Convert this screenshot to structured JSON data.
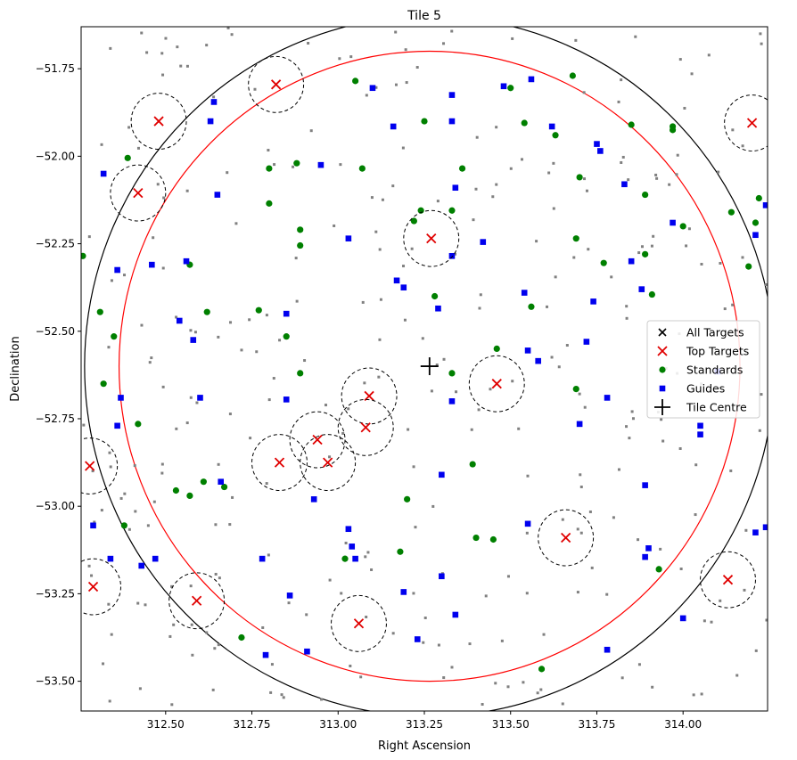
{
  "chart_data": {
    "type": "scatter",
    "title": "Tile 5",
    "xlabel": "Right Ascension",
    "ylabel": "Declination",
    "xlim": [
      312.255,
      314.245
    ],
    "ylim": [
      -53.585,
      -51.63
    ],
    "x_ticks": [
      312.5,
      312.75,
      313.0,
      313.25,
      313.5,
      313.75,
      314.0,
      314.25
    ],
    "x_tick_labels": [
      "312.50",
      "312.75",
      "313.00",
      "313.25",
      "313.50",
      "313.75",
      "314.00",
      "314.25"
    ],
    "y_ticks": [
      -51.75,
      -52.0,
      -52.25,
      -52.5,
      -52.75,
      -53.0,
      -53.25,
      -53.5
    ],
    "y_tick_labels": [
      "−51.75",
      "−52.00",
      "−52.25",
      "−52.50",
      "−52.75",
      "−53.00",
      "−53.25",
      "−53.50"
    ],
    "legend_position": "center-right",
    "legend": [
      "All Targets",
      "Top Targets",
      "Standards",
      "Guides",
      "Tile Centre"
    ],
    "colors": {
      "all_targets": "#808080",
      "top_targets": "#e00000",
      "standards": "#008000",
      "guides": "#0000ee",
      "tile_centre": "#000000",
      "inner_circle": "#ff0000",
      "outer_circle": "#000000"
    },
    "tile_centre": [
      313.265,
      -52.6
    ],
    "outer_circle_radius_deg": 1.0,
    "inner_circle_radius_deg": 0.9,
    "target_highlight_radius_deg": 0.08,
    "top_targets": [
      [
        312.48,
        -51.9
      ],
      [
        312.42,
        -52.105
      ],
      [
        312.82,
        -51.795
      ],
      [
        314.2,
        -51.905
      ],
      [
        313.27,
        -52.235
      ],
      [
        313.46,
        -52.65
      ],
      [
        313.09,
        -52.685
      ],
      [
        313.08,
        -52.775
      ],
      [
        312.94,
        -52.81
      ],
      [
        312.83,
        -52.875
      ],
      [
        312.97,
        -52.875
      ],
      [
        312.28,
        -52.885
      ],
      [
        313.66,
        -53.09
      ],
      [
        312.29,
        -53.23
      ],
      [
        312.59,
        -53.27
      ],
      [
        314.13,
        -53.21
      ],
      [
        313.06,
        -53.335
      ]
    ],
    "standards": [
      [
        312.26,
        -52.285
      ],
      [
        312.39,
        -52.005
      ],
      [
        312.31,
        -52.445
      ],
      [
        312.35,
        -52.515
      ],
      [
        312.32,
        -52.65
      ],
      [
        312.42,
        -52.765
      ],
      [
        312.38,
        -53.055
      ],
      [
        312.53,
        -52.955
      ],
      [
        312.57,
        -52.97
      ],
      [
        312.61,
        -52.93
      ],
      [
        312.62,
        -52.445
      ],
      [
        312.57,
        -52.31
      ],
      [
        312.67,
        -52.945
      ],
      [
        312.72,
        -53.375
      ],
      [
        312.77,
        -52.44
      ],
      [
        312.8,
        -52.035
      ],
      [
        312.8,
        -52.135
      ],
      [
        312.85,
        -52.515
      ],
      [
        312.88,
        -52.02
      ],
      [
        312.89,
        -52.21
      ],
      [
        312.89,
        -52.255
      ],
      [
        312.89,
        -52.62
      ],
      [
        313.02,
        -53.15
      ],
      [
        313.05,
        -51.785
      ],
      [
        313.07,
        -52.035
      ],
      [
        313.18,
        -53.13
      ],
      [
        313.2,
        -52.98
      ],
      [
        313.22,
        -52.185
      ],
      [
        313.24,
        -52.155
      ],
      [
        313.25,
        -51.9
      ],
      [
        313.28,
        -52.4
      ],
      [
        313.33,
        -52.155
      ],
      [
        313.33,
        -52.62
      ],
      [
        313.36,
        -52.035
      ],
      [
        313.39,
        -52.88
      ],
      [
        313.4,
        -53.09
      ],
      [
        313.45,
        -53.095
      ],
      [
        313.46,
        -52.55
      ],
      [
        313.5,
        -51.805
      ],
      [
        313.54,
        -51.905
      ],
      [
        313.56,
        -52.43
      ],
      [
        313.59,
        -53.465
      ],
      [
        313.63,
        -51.94
      ],
      [
        313.68,
        -51.77
      ],
      [
        313.69,
        -52.235
      ],
      [
        313.7,
        -52.06
      ],
      [
        313.69,
        -52.665
      ],
      [
        313.77,
        -52.305
      ],
      [
        313.85,
        -51.91
      ],
      [
        313.89,
        -52.11
      ],
      [
        313.89,
        -52.28
      ],
      [
        313.91,
        -52.395
      ],
      [
        313.93,
        -53.18
      ],
      [
        313.97,
        -51.915
      ],
      [
        313.97,
        -51.925
      ],
      [
        314.0,
        -52.2
      ],
      [
        314.14,
        -52.16
      ],
      [
        314.19,
        -52.315
      ],
      [
        314.22,
        -52.12
      ],
      [
        314.21,
        -52.19
      ]
    ],
    "guides": [
      [
        312.32,
        -52.05
      ],
      [
        312.36,
        -52.325
      ],
      [
        312.36,
        -52.77
      ],
      [
        312.37,
        -52.69
      ],
      [
        312.34,
        -53.15
      ],
      [
        312.43,
        -53.17
      ],
      [
        312.47,
        -53.15
      ],
      [
        312.29,
        -53.055
      ],
      [
        312.46,
        -52.31
      ],
      [
        312.54,
        -52.47
      ],
      [
        312.56,
        -52.3
      ],
      [
        312.58,
        -52.525
      ],
      [
        312.6,
        -52.69
      ],
      [
        312.63,
        -51.9
      ],
      [
        312.64,
        -51.845
      ],
      [
        312.65,
        -52.11
      ],
      [
        312.66,
        -52.93
      ],
      [
        312.78,
        -53.15
      ],
      [
        312.79,
        -53.425
      ],
      [
        312.85,
        -52.45
      ],
      [
        312.85,
        -52.695
      ],
      [
        312.86,
        -53.255
      ],
      [
        312.91,
        -53.415
      ],
      [
        312.93,
        -52.98
      ],
      [
        312.95,
        -52.025
      ],
      [
        313.03,
        -52.235
      ],
      [
        313.03,
        -53.065
      ],
      [
        313.04,
        -53.115
      ],
      [
        313.05,
        -53.15
      ],
      [
        313.1,
        -51.805
      ],
      [
        313.16,
        -51.915
      ],
      [
        313.17,
        -52.355
      ],
      [
        313.19,
        -52.375
      ],
      [
        313.19,
        -53.245
      ],
      [
        313.23,
        -53.38
      ],
      [
        313.29,
        -52.435
      ],
      [
        313.3,
        -52.91
      ],
      [
        313.3,
        -53.2
      ],
      [
        313.33,
        -51.825
      ],
      [
        313.33,
        -51.9
      ],
      [
        313.33,
        -52.285
      ],
      [
        313.33,
        -52.7
      ],
      [
        313.34,
        -52.09
      ],
      [
        313.34,
        -53.31
      ],
      [
        313.42,
        -52.245
      ],
      [
        313.48,
        -51.8
      ],
      [
        313.54,
        -52.39
      ],
      [
        313.55,
        -52.555
      ],
      [
        313.56,
        -51.78
      ],
      [
        313.58,
        -52.585
      ],
      [
        313.55,
        -53.05
      ],
      [
        313.62,
        -51.915
      ],
      [
        313.72,
        -52.53
      ],
      [
        313.74,
        -52.415
      ],
      [
        313.75,
        -51.965
      ],
      [
        313.76,
        -51.985
      ],
      [
        313.78,
        -52.69
      ],
      [
        313.78,
        -53.41
      ],
      [
        313.7,
        -52.765
      ],
      [
        313.83,
        -52.08
      ],
      [
        313.85,
        -52.3
      ],
      [
        313.88,
        -52.38
      ],
      [
        313.89,
        -52.94
      ],
      [
        313.89,
        -53.145
      ],
      [
        313.9,
        -53.12
      ],
      [
        313.97,
        -52.19
      ],
      [
        314.0,
        -53.32
      ],
      [
        314.05,
        -52.77
      ],
      [
        314.05,
        -52.795
      ],
      [
        314.1,
        -52.615
      ],
      [
        314.21,
        -52.225
      ],
      [
        314.21,
        -53.075
      ],
      [
        314.24,
        -53.06
      ],
      [
        314.24,
        -52.14
      ]
    ],
    "all_targets_count": 300,
    "all_targets_seed": 5
  }
}
